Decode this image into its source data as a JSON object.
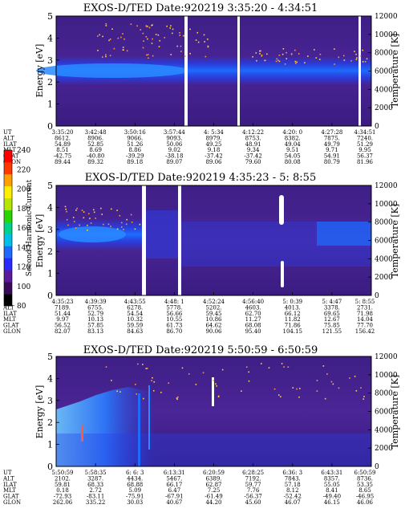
{
  "colorbar": {
    "label": "Second Harmonic Current",
    "ticks": [
      "80",
      "100",
      "120",
      "140",
      "160",
      "180",
      "200",
      "220",
      "240"
    ],
    "colors": [
      "#000000",
      "#3a0a5a",
      "#5a1a9a",
      "#2a2aff",
      "#1e6aff",
      "#00bfe8",
      "#00d28a",
      "#2ad400",
      "#b4e600",
      "#ffee00",
      "#ffa000",
      "#ff3800",
      "#ff0000"
    ]
  },
  "panels": [
    {
      "title": "EXOS-D/TED  Date:920219  3:35:20 - 4:34:51",
      "ylabel": "Energy [eV]",
      "y2label": "Temperature [K]",
      "yticks": [
        "0",
        "1",
        "2",
        "3",
        "4",
        "5"
      ],
      "y2ticks": [
        "0",
        "2000",
        "4000",
        "6000",
        "8000",
        "10000",
        "12000"
      ],
      "row_labels": [
        "UT",
        "ALT",
        "ILAT",
        "MLT",
        "GLAT",
        "GLON"
      ],
      "columns": [
        [
          "3:35:20",
          "3:42:48",
          "3:50:16",
          "3:57:44",
          "4: 5:34",
          "4:12:22",
          "4:20: 0",
          "4:27:28",
          "4:34:51"
        ],
        [
          "8612.",
          "8906.",
          "9066.",
          "9093.",
          "8979.",
          "8753.",
          "8382.",
          "7875.",
          "7240."
        ],
        [
          "54.89",
          "52.85",
          "51.26",
          "50.06",
          "49.25",
          "48.91",
          "49.04",
          "49.79",
          "51.29"
        ],
        [
          "8.51",
          "8.69",
          "8.86",
          "9.02",
          "9.18",
          "9.34",
          "9.51",
          "9.71",
          "9.95"
        ],
        [
          "-42.75",
          "-40.80",
          "-39.29",
          "-38.18",
          "-37.42",
          "-37.42",
          "54.05",
          "54.91",
          "56.37"
        ],
        [
          "89.44",
          "89.32",
          "89.18",
          "89.07",
          "89.06",
          "79.60",
          "80.08",
          "80.79",
          "81.96"
        ]
      ]
    },
    {
      "title": "EXOS-D/TED  Date:920219  4:35:23 - 5: 8:55",
      "ylabel": "Energy [eV]",
      "y2label": "Temperature [K]",
      "yticks": [
        "0",
        "1",
        "2",
        "3",
        "4",
        "5"
      ],
      "y2ticks": [
        "0",
        "2000",
        "4000",
        "6000",
        "8000",
        "10000",
        "12000"
      ],
      "row_labels": [
        "UT",
        "ALT",
        "ILAT",
        "MLT",
        "GLAT",
        "GLON"
      ],
      "columns": [
        [
          "4:35:23",
          "4:39:39",
          "4:43:55",
          "4:48: 1",
          "4:52:24",
          "4:56:40",
          "5: 0:39",
          "5: 4:47",
          "5: 8:55"
        ],
        [
          "7189.",
          "6755.",
          "6278.",
          "5778.",
          "5202.",
          "4603.",
          "4013.",
          "3378.",
          "2731."
        ],
        [
          "51.44",
          "52.79",
          "54.54",
          "56.66",
          "59.45",
          "62.70",
          "66.12",
          "69.65",
          "71.98"
        ],
        [
          "9.97",
          "10.13",
          "10.32",
          "10.55",
          "10.86",
          "11.27",
          "11.82",
          "12.67",
          "14.04"
        ],
        [
          "56.52",
          "57.85",
          "59.59",
          "61.73",
          "64.62",
          "68.08",
          "71.86",
          "75.85",
          "77.70"
        ],
        [
          "82.07",
          "83.13",
          "84.63",
          "86.70",
          "90.06",
          "95.40",
          "104.15",
          "121.55",
          "156.42"
        ]
      ]
    },
    {
      "title": "EXOS-D/TED  Date:920219  5:50:59 - 6:50:59",
      "ylabel": "Energy [eV]",
      "y2label": "Temperature [K]",
      "yticks": [
        "0",
        "1",
        "2",
        "3",
        "4",
        "5"
      ],
      "y2ticks": [
        "0",
        "2000",
        "4000",
        "6000",
        "8000",
        "10000",
        "12000"
      ],
      "row_labels": [
        "UT",
        "ALT",
        "ILAT",
        "MLT",
        "GLAT",
        "GLON"
      ],
      "columns": [
        [
          "5:50:59",
          "5:58:35",
          "6: 6: 3",
          "6:13:31",
          "6:20:59",
          "6:28:25",
          "6:36: 3",
          "6:43:31",
          "6:50:59"
        ],
        [
          "2102.",
          "3287.",
          "4434.",
          "5467.",
          "6389.",
          "7192.",
          "7843.",
          "8357.",
          "8736."
        ],
        [
          "59.81",
          "68.33",
          "68.88",
          "66.17",
          "62.87",
          "59.77",
          "57.18",
          "55.05",
          "53.35"
        ],
        [
          "0.18",
          "2.72",
          "5.09",
          "6.47",
          "7.25",
          "7.76",
          "8.12",
          "8.41",
          "8.65"
        ],
        [
          "-72.93",
          "-83.11",
          "-75.91",
          "-67.91",
          "-61.49",
          "-56.37",
          "-52.42",
          "-49.40",
          "-46.95"
        ],
        [
          "262.06",
          "335.22",
          "30.03",
          "40.67",
          "44.20",
          "45.60",
          "46.07",
          "46.15",
          "46.06"
        ]
      ]
    }
  ],
  "chart_data": [
    {
      "type": "heatmap",
      "title": "EXOS-D/TED  Date:920219  3:35:20 - 4:34:51",
      "xlabel": "UT",
      "ylabel": "Energy [eV]",
      "y2label": "Temperature [K]",
      "ylim": [
        0,
        5
      ],
      "y2lim": [
        0,
        12000
      ],
      "colorbar_label": "Second Harmonic Current",
      "colorbar_range": [
        80,
        240
      ],
      "x": [
        "3:35:20",
        "3:42:48",
        "3:50:16",
        "3:57:44",
        "4: 5:34",
        "4:12:22",
        "4:20: 0",
        "4:27:28",
        "4:34:51"
      ],
      "band_center_ev": 2.7,
      "data_gaps_ut": [
        "3:57:44",
        "4: 5:34",
        "4:34:51"
      ],
      "grid": false
    },
    {
      "type": "heatmap",
      "title": "EXOS-D/TED  Date:920219  4:35:23 - 5: 8:55",
      "xlabel": "UT",
      "ylabel": "Energy [eV]",
      "y2label": "Temperature [K]",
      "ylim": [
        0,
        5
      ],
      "y2lim": [
        0,
        12000
      ],
      "colorbar_label": "Second Harmonic Current",
      "colorbar_range": [
        80,
        240
      ],
      "x": [
        "4:35:23",
        "4:39:39",
        "4:43:55",
        "4:48: 1",
        "4:52:24",
        "4:56:40",
        "5: 0:39",
        "5: 4:47",
        "5: 8:55"
      ],
      "band_center_ev": 2.8,
      "data_gaps_ut": [
        "4:43:55",
        "4:48: 1"
      ],
      "grid": false
    },
    {
      "type": "heatmap",
      "title": "EXOS-D/TED  Date:920219  5:50:59 - 6:50:59",
      "xlabel": "UT",
      "ylabel": "Energy [eV]",
      "y2label": "Temperature [K]",
      "ylim": [
        0,
        5
      ],
      "y2lim": [
        0,
        12000
      ],
      "colorbar_label": "Second Harmonic Current",
      "colorbar_range": [
        80,
        240
      ],
      "x": [
        "5:50:59",
        "5:58:35",
        "6: 6: 3",
        "6:13:31",
        "6:20:59",
        "6:28:25",
        "6:36: 3",
        "6:43:31",
        "6:50:59"
      ],
      "band_center_ev": 1.0,
      "grid": false
    }
  ]
}
